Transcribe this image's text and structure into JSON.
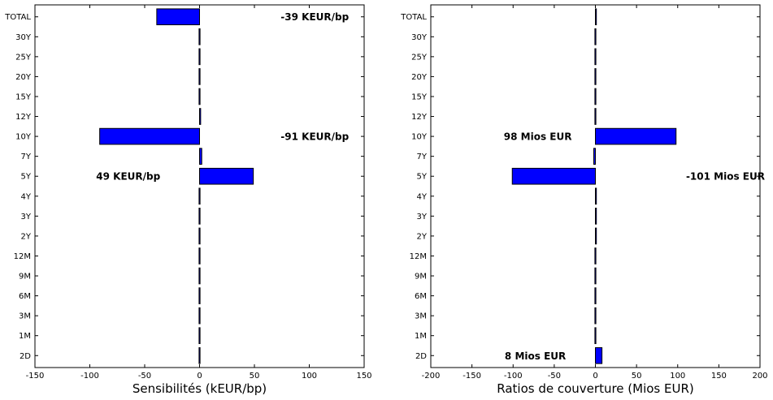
{
  "chart_data": [
    {
      "type": "bar",
      "orientation": "horizontal",
      "categories": [
        "2D",
        "1M",
        "3M",
        "6M",
        "9M",
        "12M",
        "2Y",
        "3Y",
        "4Y",
        "5Y",
        "7Y",
        "10Y",
        "12Y",
        "15Y",
        "20Y",
        "25Y",
        "30Y",
        "TOTAL"
      ],
      "values": [
        0,
        0,
        0,
        0,
        0,
        0,
        0,
        0,
        0,
        49,
        2,
        -91,
        1,
        0,
        0,
        0,
        0,
        -39
      ],
      "xlabel": "Sensibilités (kEUR/bp)",
      "ylabel": "",
      "xlim": [
        -150,
        150
      ],
      "xticks": [
        -150,
        -100,
        -50,
        0,
        50,
        100,
        150
      ],
      "bar_color": "#0000ff",
      "grid": false,
      "annotations": [
        {
          "text": "-39 KEUR/bp",
          "category": "TOTAL",
          "x": 105
        },
        {
          "text": "-91 KEUR/bp",
          "category": "10Y",
          "x": 105
        },
        {
          "text": "49 KEUR/bp",
          "category": "5Y",
          "x": -65
        }
      ]
    },
    {
      "type": "bar",
      "orientation": "horizontal",
      "categories": [
        "2D",
        "1M",
        "3M",
        "6M",
        "9M",
        "12M",
        "2Y",
        "3Y",
        "4Y",
        "5Y",
        "7Y",
        "10Y",
        "12Y",
        "15Y",
        "20Y",
        "25Y",
        "30Y",
        "TOTAL"
      ],
      "values": [
        8,
        0,
        0,
        0,
        0,
        0,
        0.5,
        0.5,
        0.5,
        -101,
        -2,
        98,
        0,
        0,
        0,
        0,
        0,
        1
      ],
      "xlabel": "Ratios de couverture (Mios EUR)",
      "ylabel": "",
      "xlim": [
        -200,
        200
      ],
      "xticks": [
        -200,
        -150,
        -100,
        -50,
        0,
        50,
        100,
        150,
        200
      ],
      "bar_color": "#0000ff",
      "grid": false,
      "annotations": [
        {
          "text": "98 Mios EUR",
          "category": "10Y",
          "x": -70
        },
        {
          "text": "-101 Mios EUR",
          "category": "5Y",
          "x": 158
        },
        {
          "text": "8 Mios EUR",
          "category": "2D",
          "x": -73
        }
      ]
    }
  ]
}
